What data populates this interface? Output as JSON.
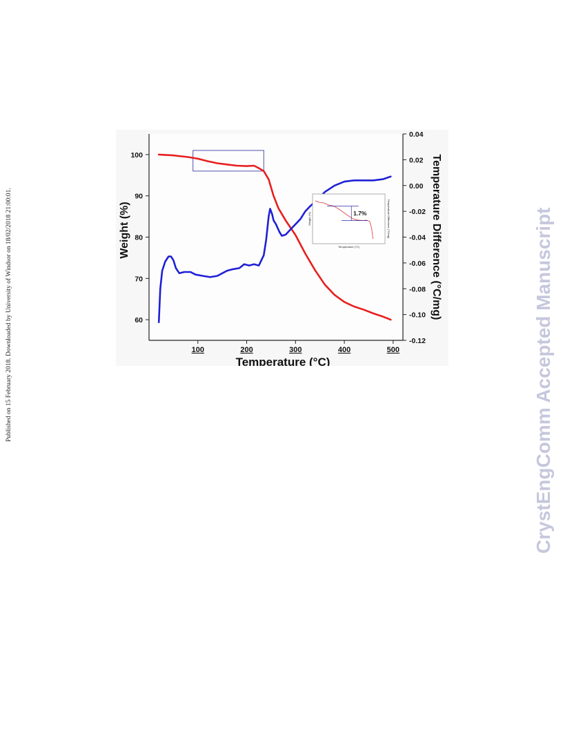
{
  "side_note": "Published on 15 February 2018. Downloaded by University of Windsor on 18/02/2018 21:00:01.",
  "watermark": "CrystEngComm Accepted Manuscript",
  "chart_data": {
    "type": "line",
    "xlabel": "Temperature (°C)",
    "ylabel_left": "Weight (%)",
    "ylabel_right": "Temperature Difference (°C/mg)",
    "xlim": [
      0,
      520
    ],
    "ylim_left": [
      55,
      105
    ],
    "ylim_right": [
      -0.12,
      0.04
    ],
    "x_ticks": [
      100,
      200,
      300,
      400,
      500
    ],
    "y_left_ticks": [
      60,
      70,
      80,
      90,
      100
    ],
    "y_right_ticks": [
      "0.04",
      "0.02",
      "0.00",
      "-0.02",
      "-0.04",
      "-0.06",
      "-0.08",
      "-0.10",
      "-0.12"
    ],
    "colors": {
      "weight": "#e81e1e",
      "dta": "#1f1fd6",
      "box": "#5050b0"
    },
    "series": [
      {
        "axis": "left",
        "color": "#e81e1e",
        "points": [
          [
            20,
            100
          ],
          [
            50,
            99.8
          ],
          [
            80,
            99.4
          ],
          [
            100,
            99
          ],
          [
            120,
            98.4
          ],
          [
            140,
            97.9
          ],
          [
            160,
            97.6
          ],
          [
            180,
            97.3
          ],
          [
            200,
            97.2
          ],
          [
            215,
            97.3
          ],
          [
            225,
            96.7
          ],
          [
            235,
            96
          ],
          [
            245,
            94
          ],
          [
            255,
            90
          ],
          [
            265,
            87
          ],
          [
            280,
            84
          ],
          [
            300,
            80.5
          ],
          [
            320,
            76
          ],
          [
            340,
            72
          ],
          [
            360,
            68.5
          ],
          [
            380,
            66
          ],
          [
            400,
            64.3
          ],
          [
            420,
            63.2
          ],
          [
            440,
            62.4
          ],
          [
            460,
            61.5
          ],
          [
            480,
            60.7
          ],
          [
            495,
            60
          ]
        ]
      },
      {
        "axis": "right",
        "color": "#1f1fd6",
        "points": [
          [
            20,
            -0.106
          ],
          [
            23,
            -0.08
          ],
          [
            27,
            -0.066
          ],
          [
            33,
            -0.059
          ],
          [
            40,
            -0.055
          ],
          [
            45,
            -0.055
          ],
          [
            50,
            -0.058
          ],
          [
            55,
            -0.064
          ],
          [
            62,
            -0.068
          ],
          [
            72,
            -0.067
          ],
          [
            85,
            -0.067
          ],
          [
            95,
            -0.069
          ],
          [
            110,
            -0.07
          ],
          [
            125,
            -0.071
          ],
          [
            140,
            -0.07
          ],
          [
            150,
            -0.068
          ],
          [
            160,
            -0.066
          ],
          [
            170,
            -0.065
          ],
          [
            185,
            -0.064
          ],
          [
            195,
            -0.061
          ],
          [
            205,
            -0.062
          ],
          [
            215,
            -0.061
          ],
          [
            225,
            -0.062
          ],
          [
            235,
            -0.054
          ],
          [
            240,
            -0.042
          ],
          [
            245,
            -0.024
          ],
          [
            248,
            -0.018
          ],
          [
            252,
            -0.022
          ],
          [
            255,
            -0.027
          ],
          [
            260,
            -0.03
          ],
          [
            267,
            -0.036
          ],
          [
            272,
            -0.039
          ],
          [
            280,
            -0.038
          ],
          [
            290,
            -0.034
          ],
          [
            300,
            -0.03
          ],
          [
            310,
            -0.026
          ],
          [
            320,
            -0.02
          ],
          [
            330,
            -0.016
          ],
          [
            345,
            -0.011
          ],
          [
            360,
            -0.005
          ],
          [
            380,
            0.0
          ],
          [
            400,
            0.003
          ],
          [
            420,
            0.004
          ],
          [
            440,
            0.004
          ],
          [
            460,
            0.004
          ],
          [
            480,
            0.005
          ],
          [
            495,
            0.007
          ]
        ]
      }
    ],
    "highlight_box": {
      "x_range": [
        90,
        235
      ],
      "y_range_left": [
        96,
        101
      ]
    },
    "inset": {
      "ylabel": "Weight (%)",
      "ylabel_right": "Temperature Difference (°C/mg)",
      "xlabel": "Temperature (°C)",
      "annotation": "1.7%",
      "curve": [
        [
          0,
          0.08
        ],
        [
          0.06,
          0.12
        ],
        [
          0.12,
          0.13
        ],
        [
          0.2,
          0.18
        ],
        [
          0.28,
          0.21
        ],
        [
          0.35,
          0.27
        ],
        [
          0.42,
          0.35
        ],
        [
          0.5,
          0.44
        ],
        [
          0.58,
          0.52
        ],
        [
          0.66,
          0.55
        ],
        [
          0.72,
          0.56
        ],
        [
          0.78,
          0.55
        ],
        [
          0.83,
          0.58
        ],
        [
          0.86,
          0.75
        ],
        [
          0.88,
          1.0
        ]
      ],
      "upper_level": 0.21,
      "lower_level": 0.56
    }
  }
}
